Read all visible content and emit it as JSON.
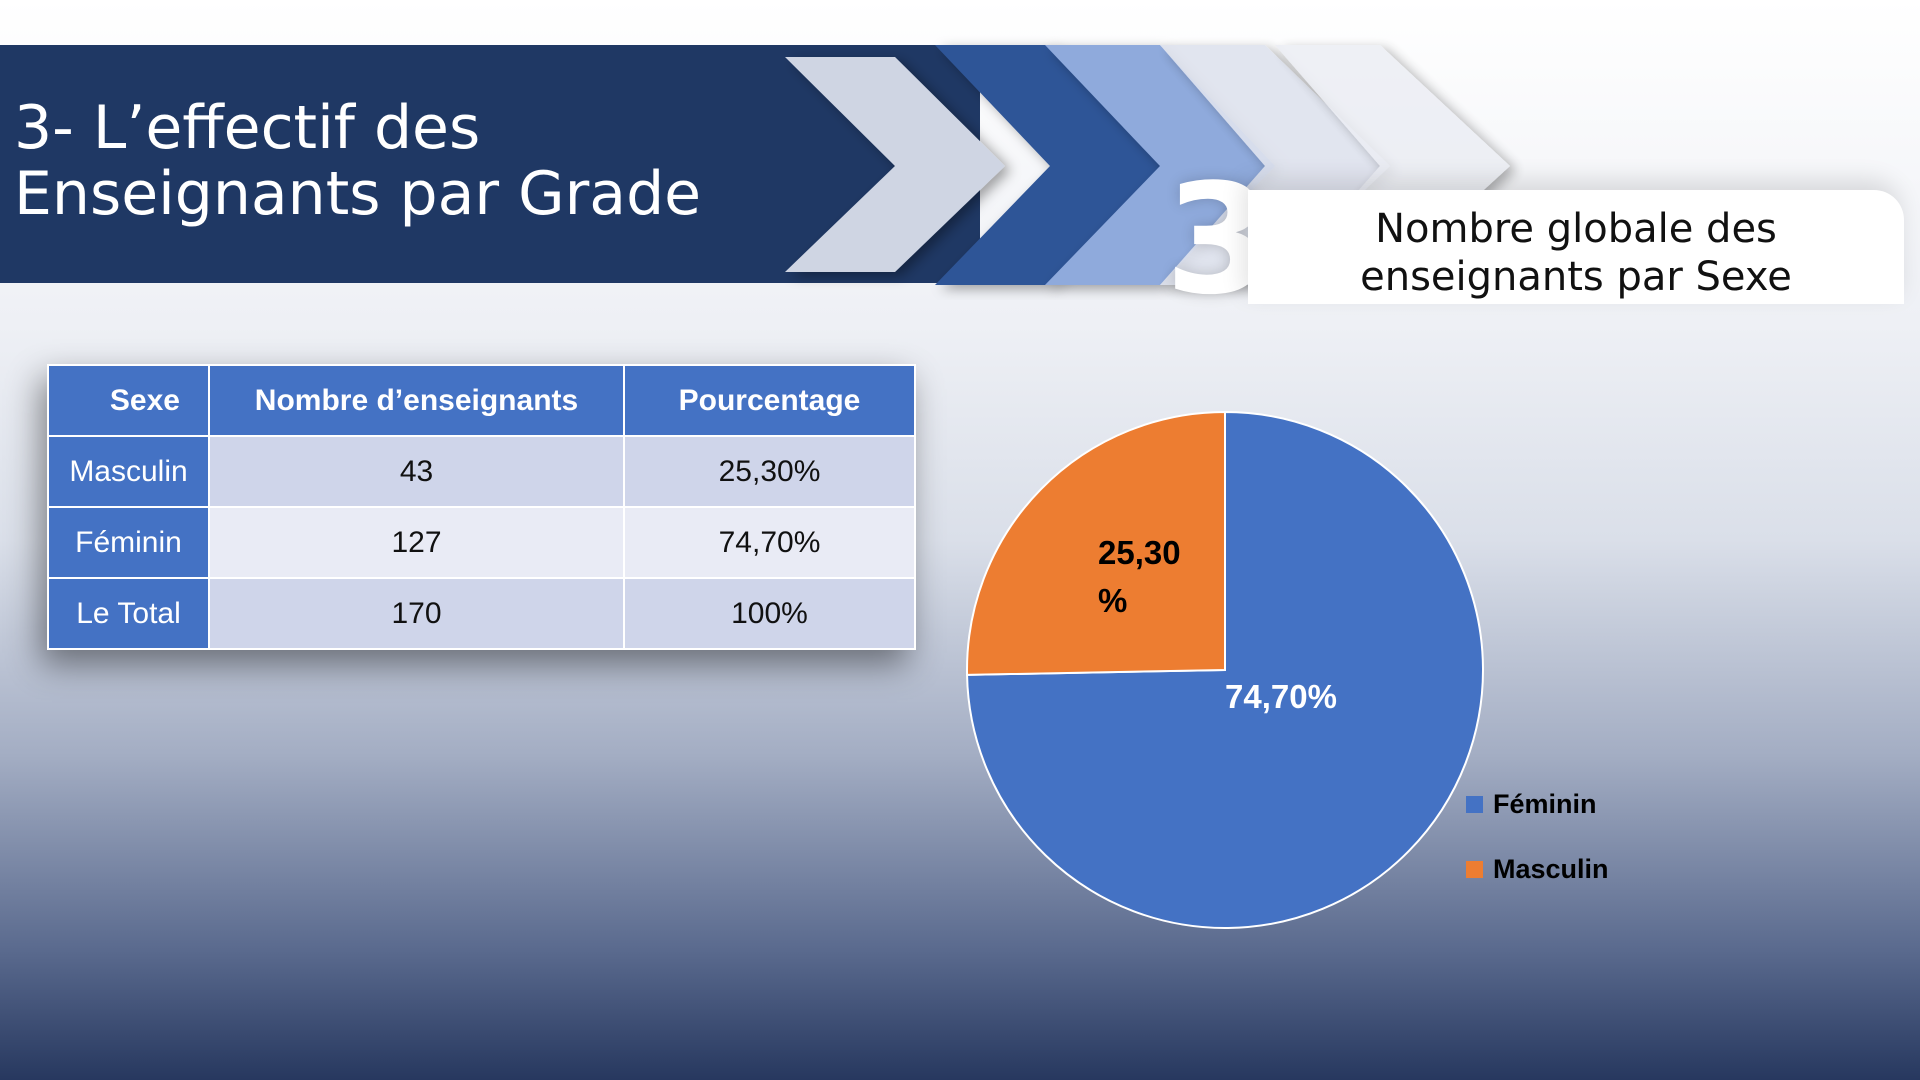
{
  "slide": {
    "title": "3- L’effectif des Enseignants par Grade",
    "section_number": "3",
    "subtitle": "Nombre globale des enseignants par Sexe"
  },
  "colors": {
    "banner": "#1f3864",
    "table_header": "#4472c4",
    "feminin": "#4472c4",
    "masculin": "#ed7d31"
  },
  "table": {
    "headers": [
      "Sexe",
      "Nombre d’enseignants",
      "Pourcentage"
    ],
    "rows": [
      [
        "Masculin",
        "43",
        "25,30%"
      ],
      [
        "Féminin",
        "127",
        "74,70%"
      ],
      [
        "Le Total",
        "170",
        "100%"
      ]
    ]
  },
  "chart_data": {
    "type": "pie",
    "categories": [
      "Féminin",
      "Masculin"
    ],
    "values": [
      74.7,
      25.3
    ],
    "data_labels": [
      "74,70%",
      "25,30 %"
    ],
    "legend": [
      "Féminin",
      "Masculin"
    ],
    "legend_placement": "right"
  }
}
